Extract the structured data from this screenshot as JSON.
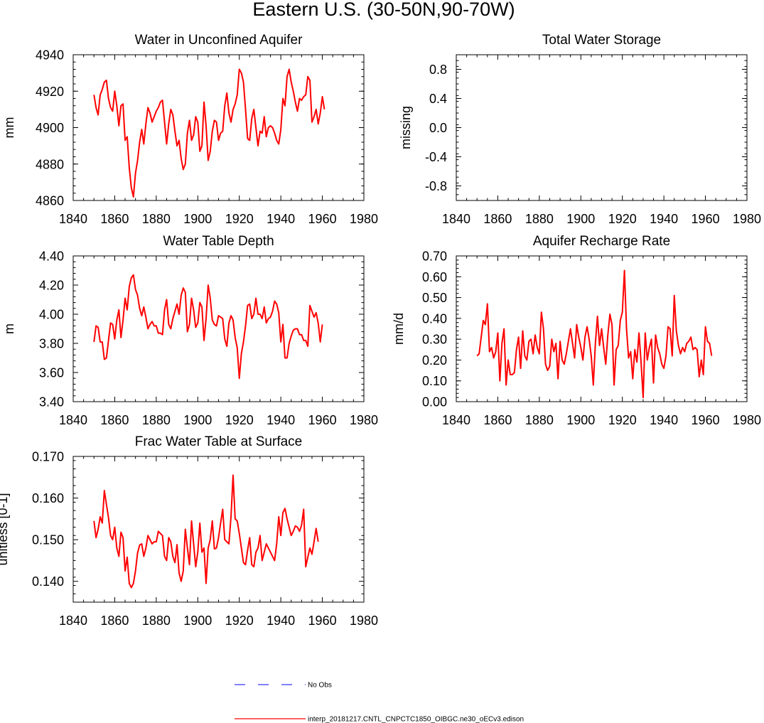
{
  "suptitle": "Eastern U.S. (30-50N,90-70W)",
  "colors": {
    "model": "#ff0000",
    "obs": "#0000ff",
    "axis": "#000000"
  },
  "legend": {
    "obs_label": "No Obs",
    "model_label": "interp_20181217.CNTL_CNPCTC1850_OIBGC.ne30_oECv3.edison"
  },
  "chart_data": [
    {
      "type": "line",
      "title": "Water in Unconfined Aquifer",
      "xlabel": "",
      "ylabel": "mm",
      "xlim": [
        1840,
        1980
      ],
      "ylim": [
        4860,
        4940
      ],
      "xticks": [
        1840,
        1860,
        1880,
        1900,
        1920,
        1940,
        1960,
        1980
      ],
      "yticks": [
        "4860",
        "4880",
        "4900",
        "4920",
        "4940"
      ],
      "x_start": 1850,
      "series": [
        {
          "name": "model",
          "values": [
            4918,
            4911,
            4907,
            4918,
            4921,
            4925,
            4926,
            4916,
            4911,
            4909,
            4920,
            4912,
            4901,
            4912,
            4913,
            4893,
            4895,
            4878,
            4867,
            4862,
            4875,
            4882,
            4892,
            4899,
            4891,
            4902,
            4911,
            4908,
            4903,
            4906,
            4909,
            4911,
            4914,
            4915,
            4903,
            4891,
            4902,
            4910,
            4907,
            4898,
            4890,
            4893,
            4883,
            4877,
            4880,
            4897,
            4904,
            4893,
            4896,
            4906,
            4903,
            4887,
            4890,
            4914,
            4901,
            4882,
            4887,
            4898,
            4904,
            4903,
            4893,
            4897,
            4898,
            4912,
            4919,
            4908,
            4903,
            4910,
            4913,
            4918,
            4932,
            4930,
            4925,
            4910,
            4894,
            4893,
            4905,
            4910,
            4900,
            4890,
            4898,
            4897,
            4906,
            4895,
            4900,
            4901,
            4900,
            4897,
            4893,
            4891,
            4899,
            4916,
            4912,
            4928,
            4932,
            4925,
            4920,
            4914,
            4909,
            4916,
            4915,
            4917,
            4918,
            4928,
            4926,
            4903,
            4906,
            4910,
            4902,
            4908,
            4917,
            4910
          ]
        }
      ]
    },
    {
      "type": "line",
      "title": "Total Water Storage",
      "xlabel": "",
      "ylabel": "missing",
      "xlim": [
        1840,
        1980
      ],
      "ylim": [
        -1.0,
        1.0
      ],
      "xticks": [
        1840,
        1860,
        1880,
        1900,
        1920,
        1940,
        1960,
        1980
      ],
      "yticks": [
        "-0.8",
        "-0.4",
        "0.0",
        "0.4",
        "0.8"
      ],
      "x_start": 1850,
      "series": []
    },
    {
      "type": "line",
      "title": "Water Table Depth",
      "xlabel": "",
      "ylabel": "m",
      "xlim": [
        1840,
        1980
      ],
      "ylim": [
        3.4,
        4.4
      ],
      "xticks": [
        1840,
        1860,
        1880,
        1900,
        1920,
        1940,
        1960,
        1980
      ],
      "yticks": [
        "3.40",
        "3.60",
        "3.80",
        "4.00",
        "4.20",
        "4.40"
      ],
      "x_start": 1850,
      "series": [
        {
          "name": "model",
          "values": [
            3.81,
            3.92,
            3.91,
            3.81,
            3.81,
            3.69,
            3.7,
            3.82,
            3.94,
            3.93,
            3.83,
            3.96,
            4.03,
            3.84,
            3.96,
            4.11,
            4.03,
            4.19,
            4.25,
            4.27,
            4.17,
            4.13,
            4.04,
            3.99,
            4.05,
            3.98,
            3.9,
            3.93,
            3.95,
            3.92,
            3.92,
            3.87,
            3.87,
            3.86,
            4.03,
            4.1,
            3.93,
            3.9,
            3.97,
            4.02,
            4.07,
            4.0,
            4.13,
            4.18,
            4.15,
            3.88,
            3.93,
            4.11,
            4.03,
            3.91,
            3.94,
            4.08,
            4.05,
            3.82,
            3.97,
            4.2,
            4.11,
            3.96,
            3.93,
            3.92,
            3.99,
            3.98,
            3.97,
            3.83,
            3.78,
            3.94,
            3.99,
            3.96,
            3.84,
            3.77,
            3.56,
            3.73,
            3.81,
            3.92,
            4.06,
            4.07,
            3.97,
            4.0,
            4.11,
            4.0,
            4.0,
            3.97,
            4.05,
            3.94,
            3.97,
            3.98,
            4.02,
            4.09,
            4.07,
            4.01,
            3.81,
            3.93,
            3.7,
            3.7,
            3.8,
            3.85,
            3.89,
            3.9,
            3.9,
            3.86,
            3.86,
            3.82,
            3.82,
            3.78,
            4.06,
            4.02,
            3.98,
            4.01,
            3.94,
            3.81,
            3.93
          ]
        }
      ]
    },
    {
      "type": "line",
      "title": "Aquifer Recharge Rate",
      "xlabel": "",
      "ylabel": "mm/d",
      "xlim": [
        1840,
        1980
      ],
      "ylim": [
        0.0,
        0.7
      ],
      "xticks": [
        1840,
        1860,
        1880,
        1900,
        1920,
        1940,
        1960,
        1980
      ],
      "yticks": [
        "0.00",
        "0.10",
        "0.20",
        "0.30",
        "0.40",
        "0.50",
        "0.60",
        "0.70"
      ],
      "x_start": 1850,
      "series": [
        {
          "name": "model",
          "values": [
            0.22,
            0.23,
            0.31,
            0.39,
            0.37,
            0.47,
            0.24,
            0.26,
            0.21,
            0.24,
            0.33,
            0.1,
            0.28,
            0.35,
            0.08,
            0.2,
            0.13,
            0.13,
            0.14,
            0.25,
            0.31,
            0.16,
            0.34,
            0.22,
            0.2,
            0.29,
            0.3,
            0.23,
            0.32,
            0.26,
            0.23,
            0.43,
            0.35,
            0.18,
            0.15,
            0.17,
            0.3,
            0.24,
            0.28,
            0.11,
            0.29,
            0.2,
            0.18,
            0.23,
            0.29,
            0.35,
            0.28,
            0.21,
            0.37,
            0.31,
            0.26,
            0.2,
            0.31,
            0.36,
            0.3,
            0.22,
            0.08,
            0.28,
            0.41,
            0.27,
            0.35,
            0.26,
            0.18,
            0.32,
            0.42,
            0.37,
            0.08,
            0.25,
            0.27,
            0.39,
            0.43,
            0.63,
            0.35,
            0.21,
            0.24,
            0.11,
            0.25,
            0.19,
            0.33,
            0.19,
            0.02,
            0.33,
            0.2,
            0.26,
            0.3,
            0.09,
            0.32,
            0.26,
            0.23,
            0.18,
            0.16,
            0.22,
            0.36,
            0.35,
            0.22,
            0.51,
            0.34,
            0.27,
            0.23,
            0.26,
            0.24,
            0.28,
            0.29,
            0.31,
            0.25,
            0.26,
            0.25,
            0.12,
            0.2,
            0.13,
            0.36,
            0.29,
            0.28,
            0.22
          ]
        }
      ]
    },
    {
      "type": "line",
      "title": "Frac Water Table at Surface",
      "xlabel": "",
      "ylabel": "unitless [0-1]",
      "xlim": [
        1840,
        1980
      ],
      "ylim": [
        0.135,
        0.17
      ],
      "xticks": [
        1840,
        1860,
        1880,
        1900,
        1920,
        1940,
        1960,
        1980
      ],
      "yticks": [
        "0.140",
        "0.150",
        "0.160",
        "0.170"
      ],
      "x_start": 1850,
      "series": [
        {
          "name": "model",
          "values": [
            0.1545,
            0.1505,
            0.1525,
            0.1555,
            0.154,
            0.1618,
            0.1585,
            0.1553,
            0.151,
            0.15,
            0.153,
            0.148,
            0.146,
            0.1518,
            0.1505,
            0.1425,
            0.1458,
            0.1395,
            0.1385,
            0.1395,
            0.1425,
            0.1468,
            0.1487,
            0.149,
            0.146,
            0.148,
            0.151,
            0.15,
            0.149,
            0.1495,
            0.1495,
            0.152,
            0.1515,
            0.151,
            0.146,
            0.145,
            0.1505,
            0.1495,
            0.146,
            0.1445,
            0.1488,
            0.142,
            0.14,
            0.1425,
            0.1525,
            0.148,
            0.144,
            0.1545,
            0.149,
            0.1435,
            0.147,
            0.154,
            0.147,
            0.148,
            0.1395,
            0.148,
            0.15,
            0.1545,
            0.1478,
            0.148,
            0.1505,
            0.154,
            0.1573,
            0.15,
            0.1495,
            0.149,
            0.1555,
            0.1655,
            0.155,
            0.1545,
            0.1515,
            0.148,
            0.1445,
            0.144,
            0.1475,
            0.1505,
            0.144,
            0.1435,
            0.147,
            0.148,
            0.151,
            0.145,
            0.147,
            0.149,
            0.148,
            0.147,
            0.146,
            0.145,
            0.149,
            0.1555,
            0.151,
            0.1565,
            0.1575,
            0.155,
            0.153,
            0.151,
            0.152,
            0.1533,
            0.153,
            0.152,
            0.1535,
            0.1573,
            0.1435,
            0.1458,
            0.148,
            0.1465,
            0.1495,
            0.1527,
            0.1495
          ]
        }
      ]
    }
  ]
}
